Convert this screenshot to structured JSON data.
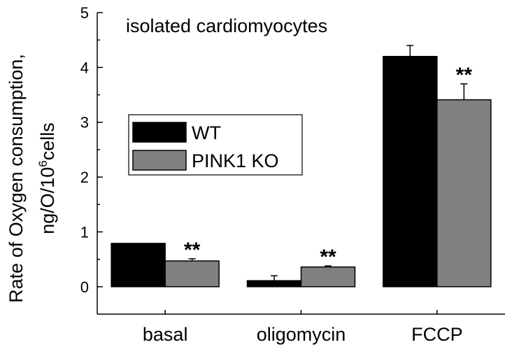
{
  "chart_data": {
    "type": "bar",
    "title": "isolated cardiomyocytes",
    "ylabel_line1": "Rate of Oxygen consumption,",
    "ylabel_line2_prefix": "ng/O/10",
    "ylabel_line2_sup": "6",
    "ylabel_line2_suffix": "cells",
    "categories": [
      "basal",
      "oligomycin",
      "FCCP"
    ],
    "ylim": [
      -0.5,
      5
    ],
    "yticks": [
      "0",
      "1",
      "2",
      "3",
      "4",
      "5"
    ],
    "series": [
      {
        "name": "WT",
        "color": "#000000",
        "values": [
          0.79,
          0.11,
          4.2
        ],
        "errors": [
          0.0,
          0.09,
          0.2
        ],
        "annotations": [
          "",
          "",
          ""
        ]
      },
      {
        "name": "PINK1 KO",
        "color": "#808080",
        "values": [
          0.47,
          0.36,
          3.41
        ],
        "errors": [
          0.04,
          0.02,
          0.29
        ],
        "annotations": [
          "**",
          "**",
          "**"
        ]
      }
    ],
    "legend_position": "middle-left",
    "grid": false
  }
}
